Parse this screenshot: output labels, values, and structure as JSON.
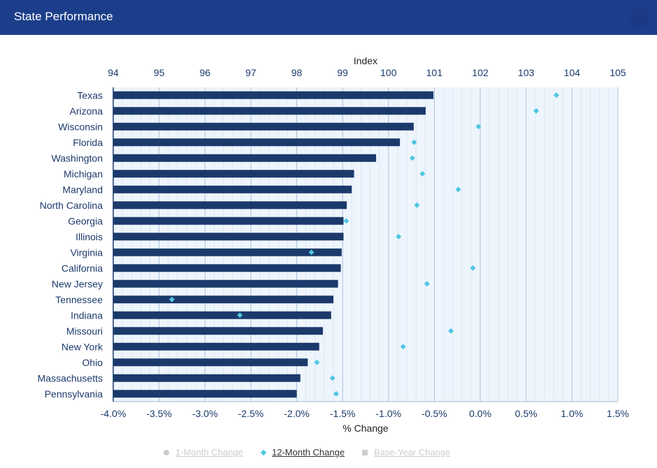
{
  "header": {
    "title": "State Performance"
  },
  "legend": {
    "items": [
      {
        "label": "1-Month Change",
        "symbol": "circle-icon",
        "active": false
      },
      {
        "label": "12-Month Change",
        "symbol": "diamond-icon",
        "active": true
      },
      {
        "label": "Base-Year Change",
        "symbol": "square-icon",
        "active": false
      }
    ]
  },
  "colors": {
    "header": "#1c3e8a",
    "bar": "#1b3a6b",
    "marker": "#4fc6e1",
    "inactive_legend": "#cccccc",
    "plot_bg": "#eef5fc"
  },
  "chart_data": {
    "type": "bar",
    "orientation": "horizontal",
    "categories": [
      "Texas",
      "Arizona",
      "Wisconsin",
      "Florida",
      "Washington",
      "Michigan",
      "Maryland",
      "North Carolina",
      "Georgia",
      "Illinois",
      "Virginia",
      "California",
      "New Jersey",
      "Tennessee",
      "Indiana",
      "Missouri",
      "New York",
      "Ohio",
      "Massachusetts",
      "Pennsylvania"
    ],
    "top_axis": {
      "label": "Index",
      "min": 94,
      "max": 105,
      "ticks": [
        "94",
        "95",
        "96",
        "97",
        "98",
        "99",
        "100",
        "101",
        "102",
        "103",
        "104",
        "105"
      ]
    },
    "bottom_axis": {
      "label": "% Change",
      "min": -4.0,
      "max": 1.5,
      "ticks": [
        "-4.0%",
        "-3.5%",
        "-3.0%",
        "-2.5%",
        "-2.0%",
        "-1.5%",
        "-1.0%",
        "-0.5%",
        "0.0%",
        "0.5%",
        "1.0%",
        "1.5%"
      ]
    },
    "series": [
      {
        "type": "bar",
        "axis": "top",
        "values": [
          100.98,
          100.81,
          100.55,
          100.25,
          99.73,
          99.25,
          99.2,
          99.09,
          99.02,
          99.02,
          98.98,
          98.96,
          98.9,
          98.8,
          98.75,
          98.57,
          98.49,
          98.24,
          98.08,
          98.0
        ]
      },
      {
        "name": "12-Month Change",
        "type": "scatter",
        "marker": "diamond",
        "axis": "bottom",
        "values": [
          0.83,
          0.61,
          -0.02,
          -0.72,
          -0.74,
          -0.63,
          -0.24,
          -0.69,
          -1.46,
          -0.89,
          -1.84,
          -0.08,
          -0.58,
          -3.36,
          -2.62,
          -0.32,
          -0.84,
          -1.78,
          -1.61,
          -1.57
        ]
      }
    ],
    "grid": true
  }
}
